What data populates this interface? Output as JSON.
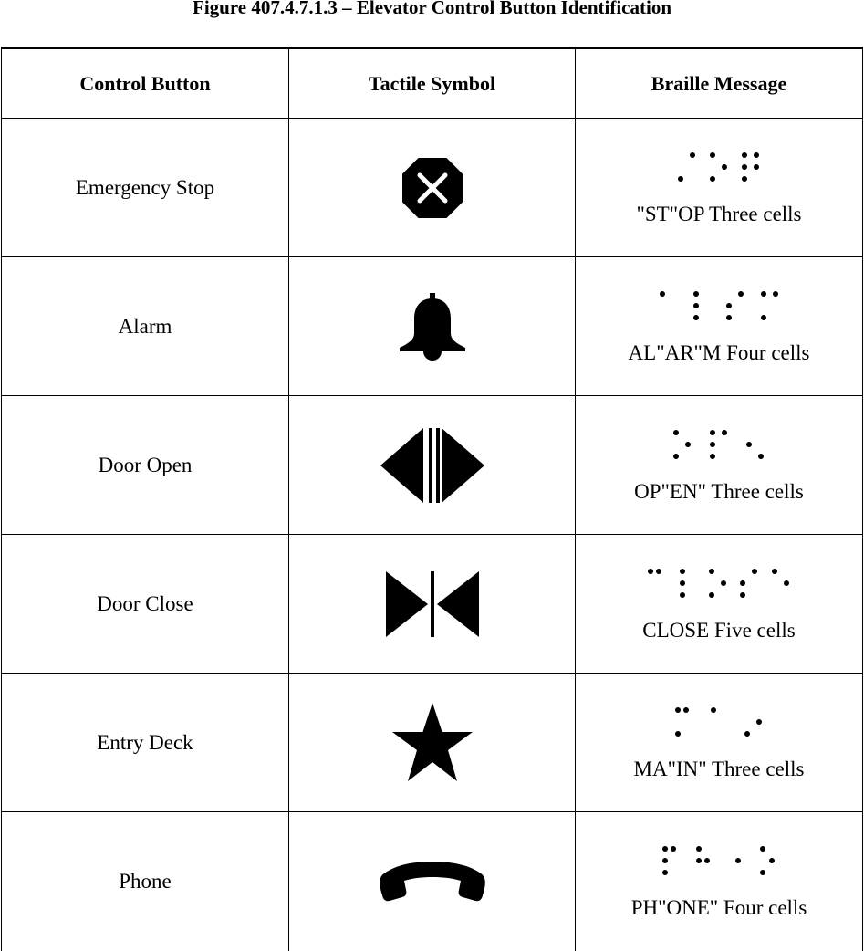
{
  "caption": "Figure 407.4.7.1.3 – Elevator Control Button Identification",
  "headers": {
    "control_button": "Control Button",
    "tactile_symbol": "Tactile Symbol",
    "braille_message": "Braille Message"
  },
  "rows": [
    {
      "control": "Emergency Stop",
      "symbol_icon": "stop-octagon-x-icon",
      "braille": "\"ST\"OP Three cells"
    },
    {
      "control": "Alarm",
      "symbol_icon": "bell-icon",
      "braille": "AL\"AR\"M Four cells"
    },
    {
      "control": "Door Open",
      "symbol_icon": "door-open-arrows-icon",
      "braille": "OP\"EN\" Three cells"
    },
    {
      "control": "Door Close",
      "symbol_icon": "door-close-arrows-icon",
      "braille": "CLOSE Five cells"
    },
    {
      "control": "Entry Deck",
      "symbol_icon": "star-icon",
      "braille": "MA\"IN\" Three cells"
    },
    {
      "control": "Phone",
      "symbol_icon": "telephone-handset-icon",
      "braille": "PH\"ONE\" Four cells"
    }
  ],
  "colors": {
    "ink": "#000000",
    "background": "#ffffff"
  }
}
